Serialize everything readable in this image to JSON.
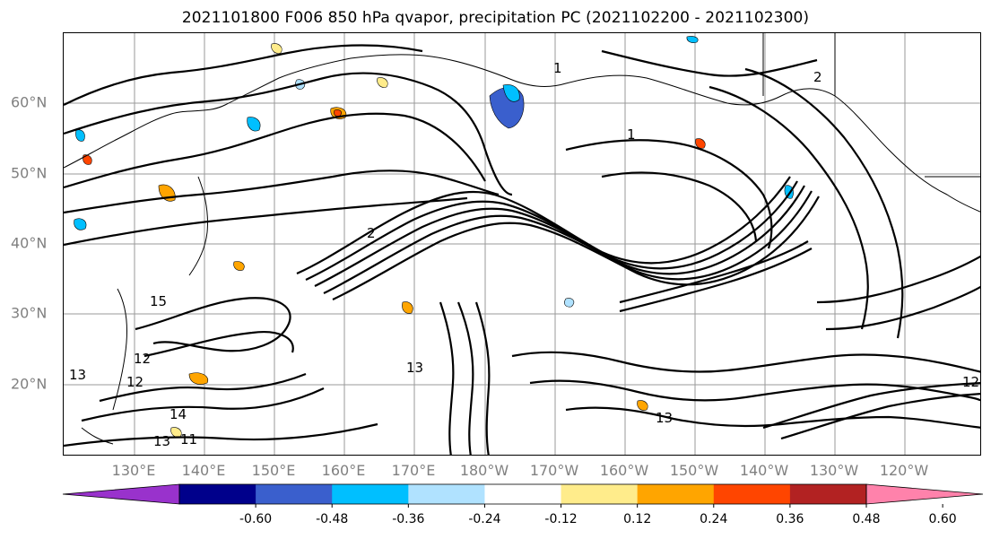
{
  "title": "2021101800 F006 850 hPa qvapor, precipitation PC (2021102200 - 2021102300)",
  "lat_labels": [
    "60°N",
    "50°N",
    "40°N",
    "30°N",
    "20°N"
  ],
  "lon_labels": [
    "130°E",
    "140°E",
    "150°E",
    "160°E",
    "170°E",
    "180°W",
    "170°W",
    "160°W",
    "150°W",
    "140°W",
    "130°W",
    "120°W"
  ],
  "colorbar": {
    "colors": [
      "#9932cc",
      "#00008b",
      "#3a5fcd",
      "#00bfff",
      "#b0e2ff",
      "#ffffff",
      "#ffec8b",
      "#ffa500",
      "#ff4500",
      "#b22222",
      "#ff82ab"
    ],
    "tick_labels": [
      "-0.60",
      "-0.48",
      "-0.36",
      "-0.24",
      "-0.12",
      "0.12",
      "0.24",
      "0.36",
      "0.48",
      "0.60"
    ]
  },
  "contour_labels": [
    "2",
    "1",
    "2",
    "1",
    "12",
    "13",
    "14",
    "15",
    "13",
    "13",
    "11",
    "13",
    "12",
    "12"
  ]
}
